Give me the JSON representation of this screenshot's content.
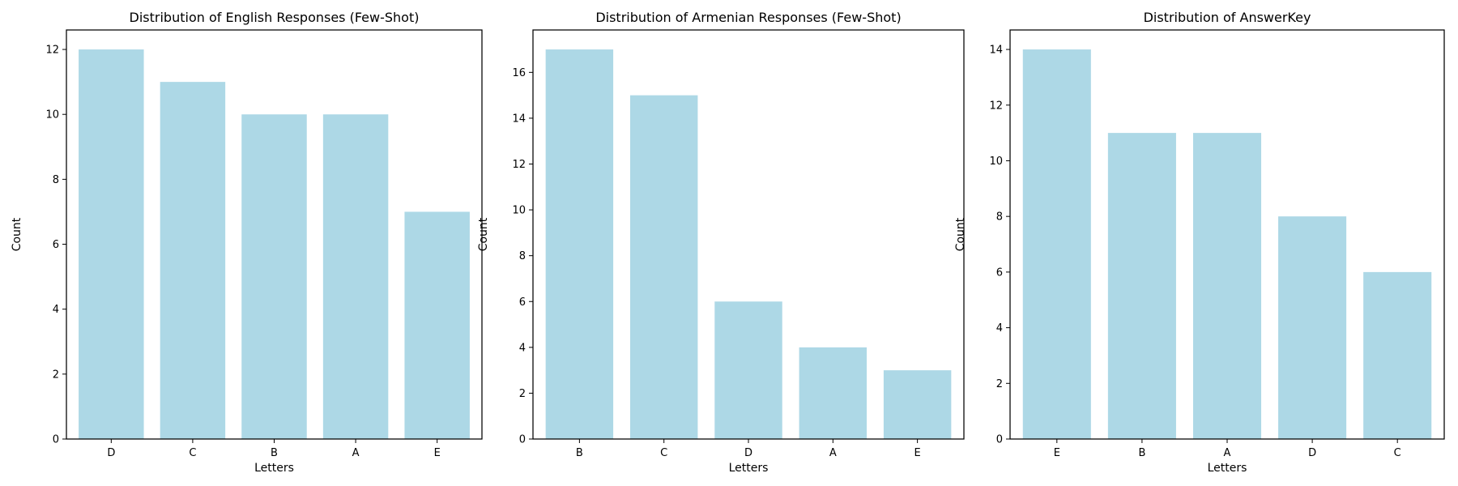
{
  "chart_data": [
    {
      "type": "bar",
      "title": "Distribution of English Responses (Few-Shot)",
      "xlabel": "Letters",
      "ylabel": "Count",
      "categories": [
        "D",
        "C",
        "B",
        "A",
        "E"
      ],
      "values": [
        12,
        11,
        10,
        10,
        7
      ],
      "ylim": [
        0,
        12.6
      ],
      "yticks": [
        0,
        2,
        4,
        6,
        8,
        10,
        12
      ],
      "bar_color": "#add8e6",
      "grid": false
    },
    {
      "type": "bar",
      "title": "Distribution of Armenian Responses (Few-Shot)",
      "xlabel": "Letters",
      "ylabel": "Count",
      "categories": [
        "B",
        "C",
        "D",
        "A",
        "E"
      ],
      "values": [
        17,
        15,
        6,
        4,
        3
      ],
      "ylim": [
        0,
        17.85
      ],
      "yticks": [
        0,
        2,
        4,
        6,
        8,
        10,
        12,
        14,
        16
      ],
      "bar_color": "#add8e6",
      "grid": false
    },
    {
      "type": "bar",
      "title": "Distribution of AnswerKey",
      "xlabel": "Letters",
      "ylabel": "Count",
      "categories": [
        "E",
        "B",
        "A",
        "D",
        "C"
      ],
      "values": [
        14,
        11,
        11,
        8,
        6
      ],
      "ylim": [
        0,
        14.7
      ],
      "yticks": [
        0,
        2,
        4,
        6,
        8,
        10,
        12,
        14
      ],
      "bar_color": "#add8e6",
      "grid": false
    }
  ]
}
